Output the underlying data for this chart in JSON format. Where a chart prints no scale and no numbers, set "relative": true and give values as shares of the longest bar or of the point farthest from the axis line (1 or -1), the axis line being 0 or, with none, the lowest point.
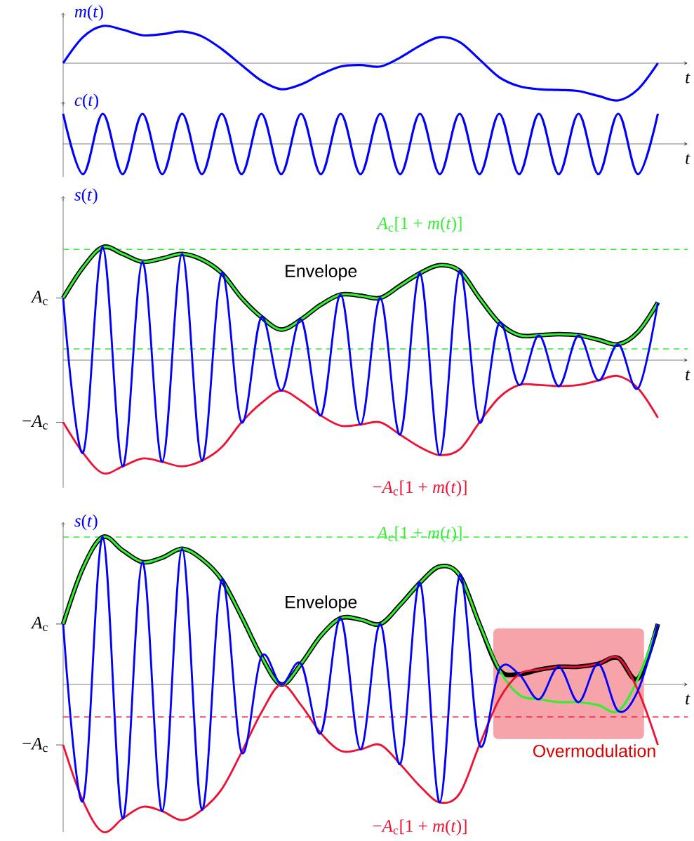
{
  "chart_data": [
    {
      "type": "line",
      "relative": true,
      "ylabel": "*m*(*t*)",
      "xlabel": "*t*",
      "color": "#0000ff",
      "categories": [
        null,
        null,
        null,
        null,
        null,
        null,
        null,
        null,
        null,
        null,
        null,
        null,
        null,
        null,
        null,
        null,
        null,
        null,
        null,
        null,
        null,
        null,
        null,
        null,
        null,
        null,
        null,
        null,
        null,
        null,
        null
      ],
      "values": [
        0,
        0.7,
        1.0,
        0.9,
        0.75,
        0.78,
        0.85,
        0.72,
        0.38,
        -0.05,
        -0.47,
        -0.7,
        -0.57,
        -0.3,
        -0.09,
        -0.05,
        -0.09,
        0.15,
        0.47,
        0.7,
        0.57,
        0.1,
        -0.38,
        -0.62,
        -0.7,
        -0.72,
        -0.75,
        -0.88,
        -1.0,
        -0.7,
        0
      ]
    },
    {
      "type": "line",
      "relative": true,
      "ylabel": "*c*(*t*)",
      "xlabel": "*t*",
      "color": "#0000ff",
      "categories": [
        null,
        null,
        null,
        null,
        null,
        null,
        null,
        null,
        null,
        null,
        null,
        null,
        null,
        null,
        null,
        null,
        null,
        null,
        null,
        null,
        null,
        null,
        null,
        null,
        null,
        null,
        null,
        null,
        null,
        null,
        null
      ],
      "values": [
        1,
        -1,
        1,
        -1,
        1,
        -1,
        1,
        -1,
        1,
        -1,
        1,
        -1,
        1,
        -1,
        1,
        -1,
        1,
        -1,
        1,
        -1,
        1,
        -1,
        1,
        -1,
        1,
        -1,
        1,
        -1,
        1,
        -1,
        1
      ]
    },
    {
      "type": "line",
      "relative": true,
      "ylabel": "*s*(*t*)",
      "xlabel": "*t*",
      "categories": [
        null,
        null,
        null,
        null,
        null,
        null,
        null,
        null,
        null,
        null,
        null,
        null,
        null,
        null,
        null,
        null,
        null,
        null,
        null,
        null,
        null,
        null,
        null,
        null,
        null,
        null,
        null,
        null,
        null,
        null,
        null
      ],
      "series": [
        {
          "color": "#000000",
          "values": [
            0.55,
            0.82,
            1.0,
            0.94,
            0.87,
            0.9,
            0.94,
            0.89,
            0.77,
            0.55,
            0.38,
            0.27,
            0.36,
            0.49,
            0.58,
            0.57,
            0.55,
            0.66,
            0.77,
            0.84,
            0.79,
            0.55,
            0.33,
            0.22,
            0.22,
            0.23,
            0.22,
            0.18,
            0.14,
            0.25,
            0.51
          ]
        },
        {
          "name": "*A*$_{c}$[1 + *m*(*t*)]",
          "color": "#33ee33",
          "values": [
            0.55,
            0.82,
            1.0,
            0.94,
            0.87,
            0.9,
            0.94,
            0.89,
            0.77,
            0.55,
            0.38,
            0.27,
            0.36,
            0.49,
            0.58,
            0.57,
            0.55,
            0.66,
            0.77,
            0.84,
            0.79,
            0.55,
            0.33,
            0.22,
            0.22,
            0.23,
            0.22,
            0.18,
            0.14,
            0.25,
            0.51
          ]
        },
        {
          "name": "−*A*$_{c}$[1 + *m*(*t*)]",
          "color": "#ee1133",
          "values": [
            -0.55,
            -0.82,
            -1.0,
            -0.94,
            -0.87,
            -0.9,
            -0.94,
            -0.89,
            -0.77,
            -0.55,
            -0.38,
            -0.27,
            -0.36,
            -0.49,
            -0.58,
            -0.57,
            -0.55,
            -0.66,
            -0.77,
            -0.84,
            -0.79,
            -0.55,
            -0.33,
            -0.22,
            -0.22,
            -0.23,
            -0.22,
            -0.18,
            -0.14,
            -0.25,
            -0.51
          ]
        },
        {
          "color": "#0000ff",
          "values": [
            0.55,
            -0.82,
            1.0,
            -0.94,
            0.87,
            -0.9,
            0.94,
            -0.89,
            0.77,
            -0.55,
            0.38,
            -0.27,
            0.36,
            -0.49,
            0.58,
            -0.57,
            0.55,
            -0.66,
            0.77,
            -0.84,
            0.79,
            -0.55,
            0.33,
            -0.22,
            0.22,
            -0.23,
            0.22,
            -0.18,
            0.14,
            -0.25,
            0.51
          ]
        }
      ],
      "ref_lines": [
        {
          "axis": "y",
          "value": 0.98,
          "color": "#33ee33",
          "line_style": "dashed"
        },
        {
          "axis": "y",
          "value": 0.1,
          "color": "#33ee33",
          "line_style": "dashed"
        }
      ],
      "annotations": [
        "Envelope",
        "*A*$_{c}$",
        "−*A*$_{c}$"
      ]
    },
    {
      "type": "line",
      "relative": true,
      "ylabel": "*s*(*t*)",
      "xlabel": "*t*",
      "categories": [
        null,
        null,
        null,
        null,
        null,
        null,
        null,
        null,
        null,
        null,
        null,
        null,
        null,
        null,
        null,
        null,
        null,
        null,
        null,
        null,
        null,
        null,
        null,
        null,
        null,
        null,
        null,
        null,
        null,
        null,
        null
      ],
      "series": [
        {
          "color": "#000000",
          "values": [
            0.41,
            0.79,
            1.0,
            0.91,
            0.83,
            0.86,
            0.92,
            0.85,
            0.71,
            0.46,
            0.19,
            0.0,
            0.14,
            0.33,
            0.45,
            0.44,
            0.41,
            0.54,
            0.69,
            0.8,
            0.74,
            0.41,
            0.1,
            0.07,
            0.1,
            0.12,
            0.12,
            0.14,
            0.18,
            0.04,
            0.41
          ]
        },
        {
          "name": "*A*$_{c}$[1 + *m*(*t*)]",
          "color": "#33ee33",
          "values": [
            0.41,
            0.79,
            1.0,
            0.91,
            0.83,
            0.86,
            0.92,
            0.85,
            0.71,
            0.46,
            0.19,
            0.0,
            0.14,
            0.33,
            0.45,
            0.44,
            0.41,
            0.54,
            0.69,
            0.8,
            0.74,
            0.41,
            0.1,
            -0.07,
            -0.1,
            -0.12,
            -0.12,
            -0.14,
            -0.18,
            0.04,
            0.41
          ]
        },
        {
          "name": "−*A*$_{c}$[1 + *m*(*t*)]",
          "color": "#ee1133",
          "values": [
            -0.41,
            -0.79,
            -1.0,
            -0.91,
            -0.83,
            -0.86,
            -0.92,
            -0.85,
            -0.71,
            -0.46,
            -0.19,
            0.0,
            -0.14,
            -0.33,
            -0.45,
            -0.44,
            -0.41,
            -0.54,
            -0.69,
            -0.8,
            -0.74,
            -0.41,
            -0.1,
            0.07,
            0.1,
            0.12,
            0.12,
            0.14,
            0.18,
            -0.04,
            -0.41
          ]
        },
        {
          "color": "#0000ff",
          "values": [
            0.41,
            -0.79,
            1.0,
            -0.91,
            0.83,
            -0.86,
            0.92,
            -0.85,
            0.71,
            -0.46,
            0.19,
            0.0,
            0.14,
            -0.33,
            0.45,
            -0.44,
            0.41,
            -0.54,
            0.69,
            -0.8,
            0.74,
            -0.41,
            0.1,
            0.07,
            -0.1,
            0.12,
            -0.12,
            0.14,
            -0.18,
            -0.04,
            0.41
          ]
        }
      ],
      "ref_lines": [
        {
          "axis": "y",
          "value": 1.0,
          "color": "#33ee33",
          "line_style": "dashed"
        },
        {
          "axis": "y",
          "value": -0.22,
          "color": "#ee1133",
          "line_style": "dashed"
        }
      ],
      "annotations": [
        "Envelope",
        "Overmodulation",
        "*A*$_{c}$",
        "−*A*$_{c}$"
      ]
    }
  ]
}
